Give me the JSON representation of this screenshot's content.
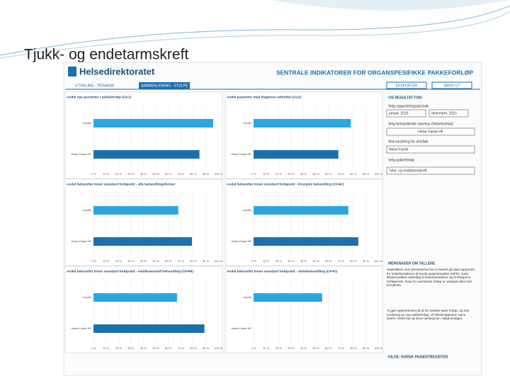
{
  "slide_title": "Tjukk- og endetarmskreft",
  "header": {
    "logo": "Helsedirektoratet",
    "title": "SENTRALE INDIKATORER FOR ORGANSPESIFIKKE PAKKEFORLØP",
    "tabs": [
      "UTVIKLING - TIDSAKSE",
      "SAMMENLIGNING - STOLPE"
    ],
    "buttons": [
      "EKSPORTER",
      "SKRIV UT"
    ]
  },
  "sidebar": {
    "heading": "VIS RESULTAT FOR:",
    "period_label": "Velg rapporteringsperiode",
    "period_from": "januar, 2016",
    "period_to": "desember, 2016",
    "hf_label": "Velg behandlende sykehus (helseforetak)",
    "hf_value": "Helse Førde HF",
    "area_label": "Ved vurdering for område",
    "area_value": "Helse Førde",
    "pathway_label": "Velg pakkeforløp",
    "pathway_value": "Tykk- og endetarmskreft",
    "notes_heading": "MERKNADER OM TALLENE",
    "notes": "Statistikken som presenteres her er basert på data rapportert fra helseforetakene til Norsk pasientregister (NPR). Data tilbakemeldes månedlig til helseforetakene og til forløpene fortløpende. Data for avsluttede forløp er vanligvis ikke helt komplette.",
    "notes2": "Vi gjør oppmerksom på at for enkelte typer forløp, og ved vurdering av nye pakkeforløp, vil fullstendigheten være lavere. Dette kan gi store variasjoner i tallgrunnlaget.",
    "source": "KILDE: NORSK PASIENTREGISTER"
  },
  "chart_data": [
    {
      "type": "hbar",
      "title": "Andel nye pasienter i pakkeforløp (OA1)",
      "categories": [
        "Landet",
        "Helse Førde HF"
      ],
      "values": [
        96,
        85
      ],
      "colors": [
        "#2aa7e1",
        "#1d6fae"
      ],
      "xlim": [
        0,
        100
      ],
      "xticks": [
        {
          "value": 0,
          "label": "0 %"
        },
        {
          "value": 10,
          "label": "10 %"
        },
        {
          "value": 20,
          "label": "20 %"
        },
        {
          "value": 30,
          "label": "30 %"
        },
        {
          "value": 40,
          "label": "40 %"
        },
        {
          "value": 50,
          "label": "50 %"
        },
        {
          "value": 60,
          "label": "60 %"
        },
        {
          "value": 70,
          "label": "70 %"
        },
        {
          "value": 80,
          "label": "80 %"
        },
        {
          "value": 90,
          "label": "90 %"
        },
        {
          "value": 100,
          "label": "100 %"
        }
      ]
    },
    {
      "type": "hbar",
      "title": "Andel pasienter med diagnose avkreftet (OA2)",
      "categories": [
        "Landet",
        "Helse Førde HF"
      ],
      "values": [
        78,
        68
      ],
      "colors": [
        "#2aa7e1",
        "#1d6fae"
      ],
      "xlim": [
        0,
        100
      ],
      "xticks": [
        {
          "value": 0,
          "label": "0 %"
        },
        {
          "value": 10,
          "label": "10 %"
        },
        {
          "value": 20,
          "label": "20 %"
        },
        {
          "value": 30,
          "label": "30 %"
        },
        {
          "value": 40,
          "label": "40 %"
        },
        {
          "value": 50,
          "label": "50 %"
        },
        {
          "value": 60,
          "label": "60 %"
        },
        {
          "value": 70,
          "label": "70 %"
        },
        {
          "value": 80,
          "label": "80 %"
        },
        {
          "value": 90,
          "label": "90 %"
        },
        {
          "value": 100,
          "label": "100 %"
        }
      ]
    },
    {
      "type": "hbar",
      "title": "Andel behandlet innen standard forløpstid - alle behandlingsformer",
      "categories": [
        "Landet",
        "Helse Førde HF"
      ],
      "values": [
        68,
        79
      ],
      "colors": [
        "#2aa7e1",
        "#1d6fae"
      ],
      "xlim": [
        0,
        100
      ],
      "xticks": [
        {
          "value": 0,
          "label": "0 %"
        },
        {
          "value": 10,
          "label": "10 %"
        },
        {
          "value": 20,
          "label": "20 %"
        },
        {
          "value": 30,
          "label": "30 %"
        },
        {
          "value": 40,
          "label": "40 %"
        },
        {
          "value": 50,
          "label": "50 %"
        },
        {
          "value": 60,
          "label": "60 %"
        },
        {
          "value": 70,
          "label": "70 %"
        },
        {
          "value": 80,
          "label": "80 %"
        },
        {
          "value": 90,
          "label": "90 %"
        },
        {
          "value": 100,
          "label": "100 %"
        }
      ]
    },
    {
      "type": "hbar",
      "title": "Andel behandlet innen standard forløpstid - kirurgisk behandling (OF4K)",
      "categories": [
        "Landet",
        "Helse Førde HF"
      ],
      "values": [
        76,
        84
      ],
      "colors": [
        "#2aa7e1",
        "#1d6fae"
      ],
      "xlim": [
        0,
        100
      ],
      "xticks": [
        {
          "value": 0,
          "label": "0 %"
        },
        {
          "value": 10,
          "label": "10 %"
        },
        {
          "value": 20,
          "label": "20 %"
        },
        {
          "value": 30,
          "label": "30 %"
        },
        {
          "value": 40,
          "label": "40 %"
        },
        {
          "value": 50,
          "label": "50 %"
        },
        {
          "value": 60,
          "label": "60 %"
        },
        {
          "value": 70,
          "label": "70 %"
        },
        {
          "value": 80,
          "label": "80 %"
        },
        {
          "value": 90,
          "label": "90 %"
        },
        {
          "value": 100,
          "label": "100 %"
        }
      ]
    },
    {
      "type": "hbar",
      "title": "Andel behandlet innen standard forløpstid - medikamentell behandling (OF4M)",
      "categories": [
        "Landet",
        "Helse Førde HF"
      ],
      "values": [
        67,
        89
      ],
      "colors": [
        "#2aa7e1",
        "#1d6fae"
      ],
      "xlim": [
        0,
        100
      ],
      "xticks": [
        {
          "value": 0,
          "label": "0 %"
        },
        {
          "value": 10,
          "label": "10 %"
        },
        {
          "value": 20,
          "label": "20 %"
        },
        {
          "value": 30,
          "label": "30 %"
        },
        {
          "value": 40,
          "label": "40 %"
        },
        {
          "value": 50,
          "label": "50 %"
        },
        {
          "value": 60,
          "label": "60 %"
        },
        {
          "value": 70,
          "label": "70 %"
        },
        {
          "value": 80,
          "label": "80 %"
        },
        {
          "value": 90,
          "label": "90 %"
        },
        {
          "value": 100,
          "label": "100 %"
        }
      ]
    },
    {
      "type": "hbar",
      "title": "Andel behandlet innen standard forløpstid - strålebehandling (OF4S)",
      "categories": [
        "Landet",
        "Helse Førde HF"
      ],
      "values": [
        55,
        0
      ],
      "colors": [
        "#2aa7e1",
        "#1d6fae"
      ],
      "xlim": [
        0,
        100
      ],
      "xticks": [
        {
          "value": 0,
          "label": "0 %"
        },
        {
          "value": 10,
          "label": "10 %"
        },
        {
          "value": 20,
          "label": "20 %"
        },
        {
          "value": 30,
          "label": "30 %"
        },
        {
          "value": 40,
          "label": "40 %"
        },
        {
          "value": 50,
          "label": "50 %"
        },
        {
          "value": 60,
          "label": "60 %"
        },
        {
          "value": 70,
          "label": "70 %"
        },
        {
          "value": 80,
          "label": "80 %"
        },
        {
          "value": 90,
          "label": "90 %"
        },
        {
          "value": 100,
          "label": "100 %"
        }
      ]
    }
  ]
}
